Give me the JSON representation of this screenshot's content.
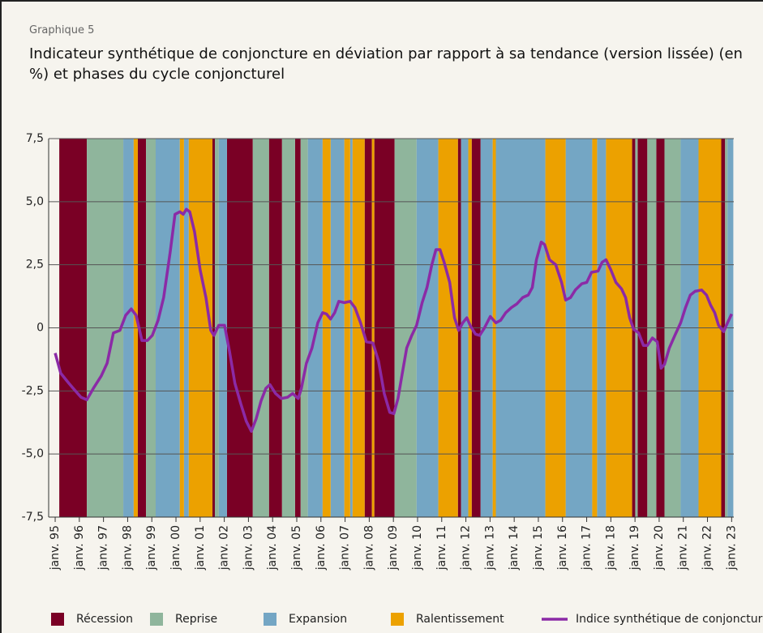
{
  "chart_data": {
    "type": "line",
    "supertitle": "Graphique 5",
    "title": "Indicateur synthétique de conjoncture en déviation par rapport à sa tendance (version lissée) (en %) et phases du cycle conjoncturel",
    "xlim": [
      1994.73,
      2023.09
    ],
    "ylim": [
      -7.5,
      7.5
    ],
    "yticks": [
      {
        "value": 7.5,
        "label": "7,5"
      },
      {
        "value": 5,
        "label": "5,0"
      },
      {
        "value": 2.5,
        "label": "2,5"
      },
      0,
      {
        "value": -2.5,
        "label": "-2,5"
      },
      {
        "value": -5,
        "label": "-5,0"
      },
      {
        "value": -7.5,
        "label": "-7,5"
      }
    ],
    "xticks": [
      {
        "value": 1995,
        "label": "janv. 95"
      },
      {
        "value": 1996,
        "label": "janv. 96"
      },
      {
        "value": 1997,
        "label": "janv. 97"
      },
      {
        "value": 1998,
        "label": "janv. 98"
      },
      {
        "value": 1999,
        "label": "janv. 99"
      },
      {
        "value": 2000,
        "label": "janv. 00"
      },
      {
        "value": 2001,
        "label": "janv. 01"
      },
      {
        "value": 2002,
        "label": "janv. 02"
      },
      {
        "value": 2003,
        "label": "janv. 03"
      },
      {
        "value": 2004,
        "label": "janv. 04"
      },
      {
        "value": 2005,
        "label": "janv. 05"
      },
      {
        "value": 2006,
        "label": "janv. 06"
      },
      {
        "value": 2007,
        "label": "janv. 07"
      },
      {
        "value": 2008,
        "label": "janv. 08"
      },
      {
        "value": 2009,
        "label": "janv. 09"
      },
      {
        "value": 2010,
        "label": "janv. 10"
      },
      {
        "value": 2011,
        "label": "janv. 11"
      },
      {
        "value": 2012,
        "label": "janv. 12"
      },
      {
        "value": 2013,
        "label": "janv. 13"
      },
      {
        "value": 2014,
        "label": "janv. 14"
      },
      {
        "value": 2015,
        "label": "janv. 15"
      },
      {
        "value": 2016,
        "label": "janv. 16"
      },
      {
        "value": 2017,
        "label": "janv. 17"
      },
      {
        "value": 2018,
        "label": "janv. 18"
      },
      {
        "value": 2019,
        "label": "janv. 19"
      },
      {
        "value": 2020,
        "label": "janv. 20"
      },
      {
        "value": 2021,
        "label": "janv. 21"
      },
      {
        "value": 2022,
        "label": "janv. 22"
      },
      {
        "value": 2023,
        "label": "janv. 23"
      }
    ],
    "grid": true,
    "bands": [
      {
        "name": "Récession",
        "color": "#7a0025",
        "periods": [
          [
            1995.17,
            1996.31
          ],
          [
            1998.42,
            1998.76
          ],
          [
            2001.51,
            2001.61
          ],
          [
            2002.11,
            2003.18
          ],
          [
            2003.85,
            2004.39
          ],
          [
            2004.93,
            2005.16
          ],
          [
            2007.81,
            2008.11
          ],
          [
            2008.21,
            2009.05
          ],
          [
            2011.67,
            2011.8
          ],
          [
            2012.24,
            2012.61
          ],
          [
            2018.88,
            2019.01
          ],
          [
            2019.11,
            2019.51
          ],
          [
            2019.88,
            2020.22
          ],
          [
            2022.57,
            2022.73
          ]
        ]
      },
      {
        "name": "Reprise",
        "color": "#8fb59c",
        "periods": [
          [
            1996.31,
            1997.82
          ],
          [
            1998.76,
            1999.16
          ],
          [
            2001.61,
            2001.77
          ],
          [
            2003.18,
            2003.85
          ],
          [
            2004.39,
            2004.93
          ],
          [
            2005.16,
            2005.46
          ],
          [
            2009.05,
            2009.96
          ],
          [
            2019.01,
            2019.11
          ],
          [
            2019.51,
            2019.88
          ],
          [
            2020.22,
            2020.89
          ],
          [
            2022.73,
            2022.83
          ]
        ]
      },
      {
        "name": "Expansion",
        "color": "#74a6c4",
        "periods": [
          [
            1997.82,
            1998.25
          ],
          [
            1999.16,
            2000.16
          ],
          [
            2000.33,
            2000.53
          ],
          [
            2001.77,
            2002.11
          ],
          [
            2005.46,
            2006.07
          ],
          [
            2006.4,
            2006.97
          ],
          [
            2007.21,
            2007.31
          ],
          [
            2009.96,
            2010.86
          ],
          [
            2011.8,
            2012.1
          ],
          [
            2012.61,
            2013.11
          ],
          [
            2013.24,
            2015.29
          ],
          [
            2016.13,
            2017.23
          ],
          [
            2017.43,
            2017.8
          ],
          [
            2020.89,
            2021.63
          ],
          [
            2022.83,
            2023.07
          ]
        ]
      },
      {
        "name": "Ralentissement",
        "color": "#eca100",
        "periods": [
          [
            1998.25,
            1998.42
          ],
          [
            2000.16,
            2000.33
          ],
          [
            2000.53,
            2001.51
          ],
          [
            2006.07,
            2006.4
          ],
          [
            2006.97,
            2007.21
          ],
          [
            2007.31,
            2007.81
          ],
          [
            2008.11,
            2008.21
          ],
          [
            2010.86,
            2011.67
          ],
          [
            2012.1,
            2012.24
          ],
          [
            2013.11,
            2013.24
          ],
          [
            2015.29,
            2016.13
          ],
          [
            2017.23,
            2017.43
          ],
          [
            2017.8,
            2018.88
          ],
          [
            2021.63,
            2022.57
          ]
        ]
      }
    ],
    "x": [
      1995.0,
      1995.23,
      1995.57,
      1995.84,
      1996.07,
      1996.31,
      1996.58,
      1996.91,
      1997.15,
      1997.41,
      1997.68,
      1997.92,
      1998.15,
      1998.35,
      1998.59,
      1998.82,
      1999.02,
      1999.26,
      1999.49,
      1999.76,
      1999.96,
      2000.16,
      2000.3,
      2000.43,
      2000.57,
      2000.77,
      2001.0,
      2001.24,
      2001.44,
      2001.57,
      2001.77,
      2002.01,
      2002.21,
      2002.44,
      2002.68,
      2002.91,
      2003.12,
      2003.32,
      2003.52,
      2003.72,
      2003.89,
      2004.12,
      2004.36,
      2004.62,
      2004.83,
      2005.06,
      2005.19,
      2005.4,
      2005.63,
      2005.87,
      2006.07,
      2006.23,
      2006.4,
      2006.57,
      2006.74,
      2006.97,
      2007.21,
      2007.41,
      2007.64,
      2007.88,
      2008.15,
      2008.38,
      2008.62,
      2008.85,
      2009.02,
      2009.19,
      2009.35,
      2009.55,
      2009.76,
      2009.96,
      2010.19,
      2010.39,
      2010.59,
      2010.76,
      2010.93,
      2011.1,
      2011.33,
      2011.53,
      2011.7,
      2011.87,
      2012.04,
      2012.2,
      2012.4,
      2012.57,
      2012.77,
      2013.01,
      2013.24,
      2013.44,
      2013.65,
      2013.88,
      2014.11,
      2014.35,
      2014.58,
      2014.75,
      2014.92,
      2015.12,
      2015.26,
      2015.46,
      2015.72,
      2015.96,
      2016.13,
      2016.33,
      2016.53,
      2016.8,
      2017.0,
      2017.2,
      2017.47,
      2017.64,
      2017.8,
      2018.0,
      2018.21,
      2018.44,
      2018.61,
      2018.78,
      2018.94,
      2019.15,
      2019.35,
      2019.51,
      2019.72,
      2019.92,
      2020.08,
      2020.22,
      2020.42,
      2020.65,
      2020.89,
      2021.09,
      2021.29,
      2021.49,
      2021.76,
      2021.96,
      2022.13,
      2022.3,
      2022.46,
      2022.67,
      2022.83,
      2023.0
    ],
    "series": [
      {
        "name": "Indice synthétique de conjoncture",
        "color": "#8b2aa6",
        "values": [
          -1.0,
          -1.8,
          -2.2,
          -2.5,
          -2.75,
          -2.85,
          -2.4,
          -1.9,
          -1.4,
          -0.2,
          -0.1,
          0.5,
          0.75,
          0.5,
          -0.5,
          -0.5,
          -0.3,
          0.3,
          1.2,
          3.0,
          4.5,
          4.6,
          4.5,
          4.7,
          4.6,
          3.8,
          2.3,
          1.2,
          -0.1,
          -0.3,
          0.1,
          0.1,
          -0.9,
          -2.2,
          -3.0,
          -3.7,
          -4.1,
          -3.6,
          -2.9,
          -2.4,
          -2.25,
          -2.6,
          -2.8,
          -2.75,
          -2.6,
          -2.8,
          -2.4,
          -1.4,
          -0.8,
          0.2,
          0.6,
          0.55,
          0.35,
          0.6,
          1.05,
          1.0,
          1.05,
          0.8,
          0.2,
          -0.55,
          -0.6,
          -1.3,
          -2.6,
          -3.35,
          -3.4,
          -2.8,
          -1.9,
          -0.8,
          -0.3,
          0.1,
          1.0,
          1.6,
          2.5,
          3.1,
          3.1,
          2.6,
          1.8,
          0.4,
          -0.1,
          0.2,
          0.4,
          0.05,
          -0.25,
          -0.3,
          0.0,
          0.45,
          0.2,
          0.3,
          0.6,
          0.8,
          0.95,
          1.2,
          1.3,
          1.6,
          2.7,
          3.4,
          3.3,
          2.7,
          2.5,
          1.8,
          1.1,
          1.2,
          1.5,
          1.75,
          1.8,
          2.2,
          2.25,
          2.6,
          2.7,
          2.3,
          1.8,
          1.55,
          1.2,
          0.4,
          -0.05,
          -0.2,
          -0.7,
          -0.7,
          -0.4,
          -0.55,
          -1.6,
          -1.45,
          -0.8,
          -0.3,
          0.2,
          0.8,
          1.3,
          1.45,
          1.5,
          1.3,
          0.9,
          0.6,
          0.1,
          -0.15,
          0.2,
          0.55
        ]
      }
    ]
  }
}
